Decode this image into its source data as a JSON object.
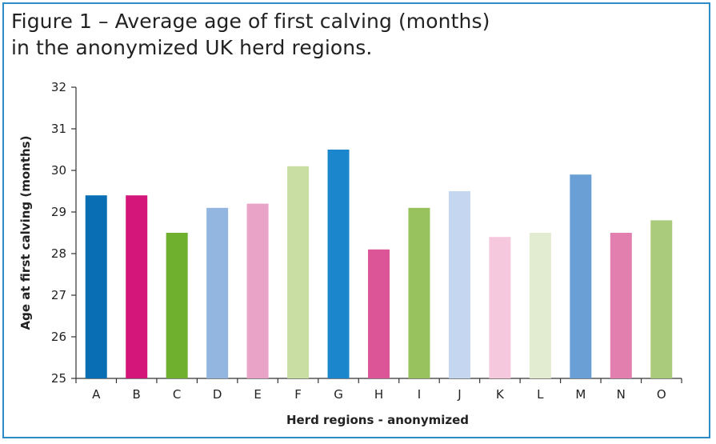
{
  "title_lines": [
    "Figure 1 – Average age of first calving (months)",
    "in the anonymized UK herd regions."
  ],
  "chart_data": {
    "type": "bar",
    "title": "Figure 1 – Average age of first calving (months) in the anonymized UK herd regions.",
    "xlabel": "Herd regions - anonymized",
    "ylabel": "Age at first calving (months)",
    "ylim": [
      25,
      32
    ],
    "yticks": [
      25,
      26,
      27,
      28,
      29,
      30,
      31,
      32
    ],
    "grid": false,
    "legend": "none",
    "categories": [
      "A",
      "B",
      "C",
      "D",
      "E",
      "F",
      "G",
      "H",
      "I",
      "J",
      "K",
      "L",
      "M",
      "N",
      "O"
    ],
    "values": [
      29.4,
      29.4,
      28.5,
      29.1,
      29.2,
      30.1,
      30.5,
      28.1,
      29.1,
      29.5,
      28.4,
      28.5,
      29.9,
      28.5,
      28.8
    ],
    "colors": [
      "#0a6eb4",
      "#d4167a",
      "#6fb02e",
      "#92b6e0",
      "#e9a3c7",
      "#c8dea3",
      "#1b86cb",
      "#dc5596",
      "#98c25e",
      "#c4d6f0",
      "#f5c8de",
      "#e1ecd1",
      "#6a9fd6",
      "#e27fae",
      "#abcb7c"
    ]
  }
}
